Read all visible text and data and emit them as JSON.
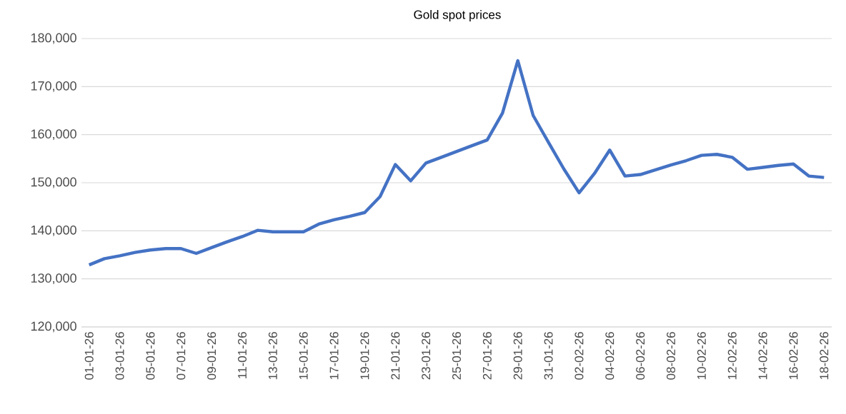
{
  "chart_data": {
    "type": "line",
    "title": "Gold spot prices",
    "categories": [
      "01-01-26",
      null,
      "03-01-26",
      null,
      "05-01-26",
      null,
      "07-01-26",
      null,
      "09-01-26",
      null,
      "11-01-26",
      null,
      "13-01-26",
      null,
      "15-01-26",
      null,
      "17-01-26",
      null,
      "19-01-26",
      null,
      "21-01-26",
      null,
      "23-01-26",
      null,
      "25-01-26",
      null,
      "27-01-26",
      null,
      "29-01-26",
      null,
      "31-01-26",
      null,
      "02-02-26",
      null,
      "04-02-26",
      null,
      "06-02-26",
      null,
      "08-02-26",
      null,
      "10-02-26",
      null,
      "12-02-26",
      null,
      "14-02-26",
      null,
      "16-02-26",
      null,
      "18-02-26"
    ],
    "series": [
      {
        "color": "#4472c4",
        "values": [
          132900,
          134200,
          134800,
          135500,
          136000,
          136300,
          136300,
          135300,
          136500,
          137700,
          138800,
          140100,
          139800,
          139800,
          139800,
          141400,
          142300,
          143000,
          143800,
          147100,
          153800,
          150400,
          154100,
          155300,
          156500,
          157700,
          158900,
          164500,
          175400,
          164000,
          158400,
          152900,
          147900,
          151900,
          156800,
          151400,
          151700,
          152700,
          153700,
          154600,
          155700,
          155900,
          155300,
          152800,
          153200,
          153600,
          153900,
          151400,
          151100
        ]
      }
    ],
    "ylim": [
      120000,
      180000
    ],
    "yticks": [
      {
        "value": 120000,
        "label": "120,000"
      },
      {
        "value": 130000,
        "label": "130,000"
      },
      {
        "value": 140000,
        "label": "140,000"
      },
      {
        "value": 150000,
        "label": "150,000"
      },
      {
        "value": 160000,
        "label": "160,000"
      },
      {
        "value": 170000,
        "label": "170,000"
      },
      {
        "value": 180000,
        "label": "180,000"
      }
    ],
    "grid": "y",
    "marker": "none",
    "line_style": "solid"
  }
}
